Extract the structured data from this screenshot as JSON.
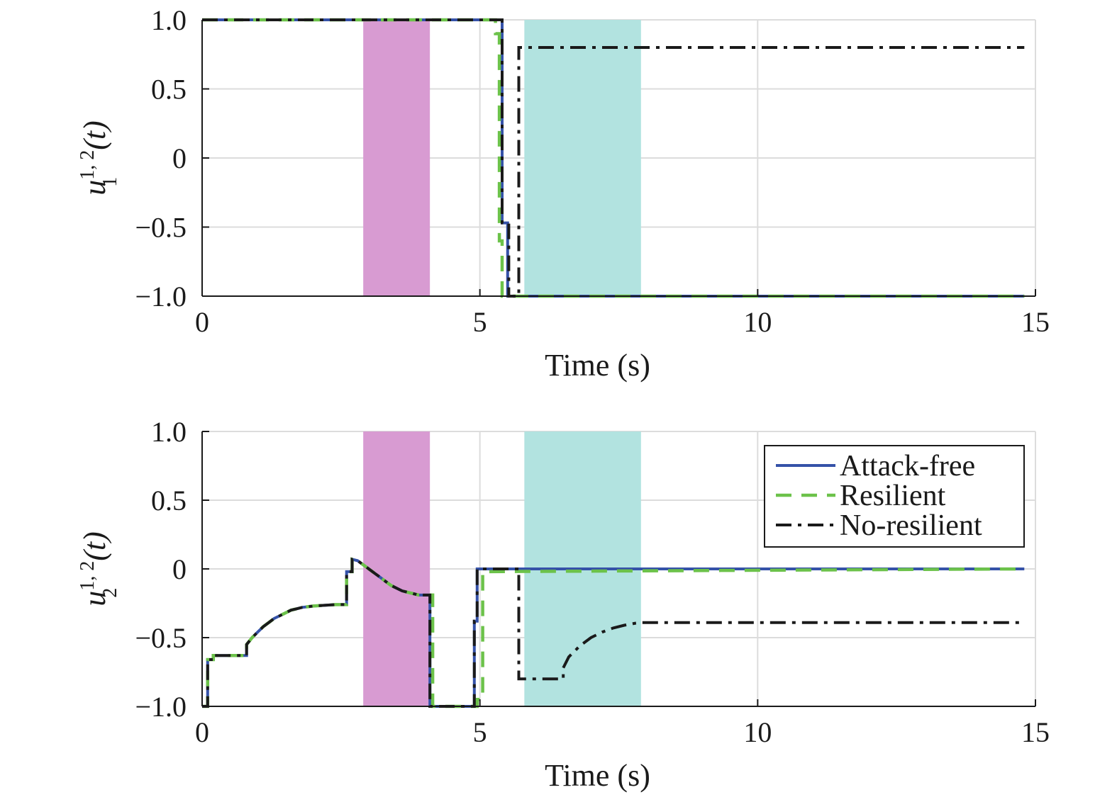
{
  "chart_data": [
    {
      "type": "line",
      "xlabel": "Time (s)",
      "ylabel": {
        "base": "u",
        "sup": "1, 2",
        "sub": "1",
        "arg": "(t)"
      },
      "xlim": [
        0,
        15
      ],
      "ylim": [
        -1.0,
        1.0
      ],
      "xticks": [
        0,
        5,
        10,
        15
      ],
      "xtick_labels": [
        "0",
        "5",
        "10",
        "15"
      ],
      "yticks": [
        1.0,
        0.5,
        0,
        -0.5,
        -1.0
      ],
      "ytick_labels": [
        "1.0",
        "0.5",
        "0",
        "−0.5",
        "−1.0"
      ],
      "grid": true,
      "shaded_regions": [
        {
          "x0": 2.9,
          "x1": 4.1,
          "color": "#d89bd2"
        },
        {
          "x0": 5.8,
          "x1": 7.9,
          "color": "#b2e3e0"
        }
      ],
      "series": [
        {
          "name": "Attack-free",
          "color": "#3552a8",
          "style": "solid",
          "x": [
            0,
            5.4,
            5.4,
            5.5,
            5.5,
            14.8
          ],
          "y": [
            1.0,
            1.0,
            -0.47,
            -0.47,
            -1.0,
            -1.0
          ]
        },
        {
          "name": "Resilient",
          "color": "#6cc24a",
          "style": "dashed",
          "x": [
            0,
            5.28,
            5.28,
            5.35,
            5.35,
            5.4,
            5.4,
            14.8
          ],
          "y": [
            1.0,
            1.0,
            0.9,
            0.9,
            -0.6,
            -0.6,
            -1.0,
            -1.0
          ]
        },
        {
          "name": "No-resilient",
          "color": "#1a1a1a",
          "style": "dashdot",
          "x": [
            0,
            5.4,
            5.4,
            5.52,
            5.52,
            5.7,
            5.7,
            14.8
          ],
          "y": [
            1.0,
            1.0,
            -0.47,
            -0.47,
            -1.0,
            -1.0,
            0.8,
            0.8
          ]
        }
      ]
    },
    {
      "type": "line",
      "xlabel": "Time (s)",
      "ylabel": {
        "base": "u",
        "sup": "1, 2",
        "sub": "2",
        "arg": "(t)"
      },
      "xlim": [
        0,
        15
      ],
      "ylim": [
        -1.0,
        1.0
      ],
      "xticks": [
        0,
        5,
        10,
        15
      ],
      "xtick_labels": [
        "0",
        "5",
        "10",
        "15"
      ],
      "yticks": [
        1.0,
        0.5,
        0,
        -0.5,
        -1.0
      ],
      "ytick_labels": [
        "1.0",
        "0.5",
        "0",
        "−0.5",
        "−1.0"
      ],
      "grid": true,
      "legend_position": "top-right",
      "shaded_regions": [
        {
          "x0": 2.9,
          "x1": 4.1,
          "color": "#d89bd2"
        },
        {
          "x0": 5.8,
          "x1": 7.9,
          "color": "#b2e3e0"
        }
      ],
      "series": [
        {
          "name": "Attack-free",
          "color": "#3552a8",
          "style": "solid",
          "x": [
            0,
            0.1,
            0.1,
            0.2,
            0.2,
            0.8,
            0.8,
            0.9,
            1.0,
            1.1,
            1.2,
            1.3,
            1.4,
            1.5,
            1.6,
            1.7,
            1.8,
            1.9,
            2.0,
            2.2,
            2.4,
            2.6,
            2.6,
            2.7,
            2.7,
            2.8,
            2.9,
            3.0,
            3.1,
            3.2,
            3.3,
            3.4,
            3.5,
            3.6,
            3.7,
            3.8,
            3.9,
            4.1,
            4.1,
            4.9,
            4.9,
            4.95,
            4.95,
            14.8
          ],
          "y": [
            -1.0,
            -1.0,
            -0.66,
            -0.66,
            -0.63,
            -0.63,
            -0.55,
            -0.5,
            -0.46,
            -0.42,
            -0.39,
            -0.36,
            -0.34,
            -0.32,
            -0.3,
            -0.29,
            -0.28,
            -0.275,
            -0.27,
            -0.265,
            -0.26,
            -0.26,
            -0.02,
            -0.02,
            0.07,
            0.06,
            0.03,
            0.0,
            -0.03,
            -0.06,
            -0.09,
            -0.12,
            -0.14,
            -0.16,
            -0.17,
            -0.18,
            -0.19,
            -0.19,
            -1.0,
            -1.0,
            -0.38,
            -0.38,
            0.0,
            0.0
          ]
        },
        {
          "name": "Resilient",
          "color": "#6cc24a",
          "style": "dashed",
          "x": [
            0,
            0.1,
            0.1,
            0.2,
            0.2,
            0.8,
            0.8,
            0.9,
            1.0,
            1.1,
            1.2,
            1.3,
            1.4,
            1.5,
            1.6,
            1.7,
            1.8,
            1.9,
            2.0,
            2.2,
            2.4,
            2.6,
            2.6,
            2.7,
            2.7,
            2.8,
            2.9,
            3.0,
            3.1,
            3.2,
            3.3,
            3.4,
            3.5,
            3.6,
            3.7,
            3.8,
            3.9,
            4.15,
            4.15,
            4.95,
            4.95,
            5.05,
            5.05,
            14.8
          ],
          "y": [
            -1.0,
            -1.0,
            -0.66,
            -0.66,
            -0.63,
            -0.63,
            -0.55,
            -0.5,
            -0.46,
            -0.42,
            -0.39,
            -0.36,
            -0.34,
            -0.32,
            -0.3,
            -0.29,
            -0.28,
            -0.275,
            -0.27,
            -0.265,
            -0.26,
            -0.26,
            -0.02,
            -0.02,
            0.07,
            0.06,
            0.03,
            0.0,
            -0.03,
            -0.06,
            -0.09,
            -0.12,
            -0.14,
            -0.16,
            -0.17,
            -0.18,
            -0.19,
            -0.19,
            -1.0,
            -1.0,
            -0.95,
            -0.95,
            -0.02,
            0.0
          ]
        },
        {
          "name": "No-resilient",
          "color": "#1a1a1a",
          "style": "dashdot",
          "x": [
            0,
            0.1,
            0.1,
            0.2,
            0.2,
            0.8,
            0.8,
            0.9,
            1.0,
            1.1,
            1.2,
            1.3,
            1.4,
            1.5,
            1.6,
            1.7,
            1.8,
            1.9,
            2.0,
            2.2,
            2.4,
            2.6,
            2.6,
            2.7,
            2.7,
            2.8,
            2.9,
            3.0,
            3.1,
            3.2,
            3.3,
            3.4,
            3.5,
            3.6,
            3.7,
            3.8,
            3.9,
            4.1,
            4.1,
            4.9,
            4.9,
            4.95,
            4.95,
            5.7,
            5.7,
            6.5,
            6.5,
            6.6,
            6.8,
            7.0,
            7.2,
            7.4,
            7.6,
            7.8,
            7.9,
            14.8
          ],
          "y": [
            -1.0,
            -1.0,
            -0.66,
            -0.66,
            -0.63,
            -0.63,
            -0.55,
            -0.5,
            -0.46,
            -0.42,
            -0.39,
            -0.36,
            -0.34,
            -0.32,
            -0.3,
            -0.29,
            -0.28,
            -0.275,
            -0.27,
            -0.265,
            -0.26,
            -0.26,
            -0.02,
            -0.02,
            0.07,
            0.06,
            0.03,
            0.0,
            -0.03,
            -0.06,
            -0.09,
            -0.12,
            -0.14,
            -0.16,
            -0.17,
            -0.18,
            -0.19,
            -0.19,
            -1.0,
            -1.0,
            -0.38,
            -0.38,
            0.0,
            0.0,
            -0.8,
            -0.8,
            -0.72,
            -0.64,
            -0.56,
            -0.5,
            -0.46,
            -0.43,
            -0.41,
            -0.395,
            -0.39,
            -0.39
          ]
        }
      ]
    }
  ]
}
